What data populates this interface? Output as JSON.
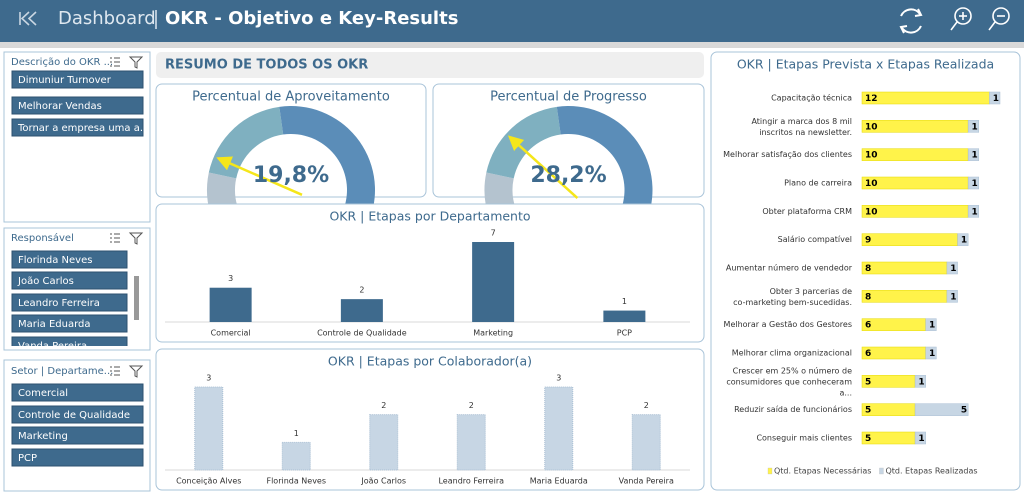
{
  "header": {
    "section": "Dashboard",
    "title": "OKR - Objetivo e Key-Results"
  },
  "slicers": [
    {
      "title": "Descrição do OKR ...",
      "items": [
        "Dimuniur Turnover",
        "Melhorar Vendas",
        "Tornar a empresa uma a..."
      ]
    },
    {
      "title": "Responsável",
      "items": [
        "Florinda Neves",
        "João Carlos",
        "Leandro Ferreira",
        "Maria Eduarda",
        "Vanda Pereira"
      ]
    },
    {
      "title": "Setor | Departame...",
      "items": [
        "Comercial",
        "Controle de Qualidade",
        "Marketing",
        "PCP"
      ]
    }
  ],
  "summary": {
    "title": "RESUMO DE TODOS OS OKR"
  },
  "chart_data": [
    {
      "type": "gauge",
      "title": "Percentual de Aproveitamento",
      "values": [
        19.8
      ],
      "value_labels": [
        "19,8%"
      ],
      "ylim": [
        0,
        100
      ]
    },
    {
      "type": "gauge",
      "title": "Percentual de Progresso",
      "values": [
        28.2
      ],
      "value_labels": [
        "28,2%"
      ],
      "ylim": [
        0,
        100
      ]
    },
    {
      "type": "bar",
      "title": "OKR | Etapas por Departamento",
      "categories": [
        "Comercial",
        "Controle de Qualidade",
        "Marketing",
        "PCP"
      ],
      "values": [
        3,
        2,
        7,
        1
      ],
      "color": "#3e6a8d"
    },
    {
      "type": "bar",
      "title": "OKR | Etapas por Colaborador(a)",
      "categories": [
        "Conceição Alves",
        "Florinda Neves",
        "João Carlos",
        "Leandro Ferreira",
        "Maria Eduarda",
        "Vanda Pereira"
      ],
      "values": [
        3,
        1,
        2,
        2,
        3,
        2
      ],
      "color": "#c7d6e4"
    },
    {
      "type": "barh",
      "title": "OKR | Etapas Prevista x Etapas Realizada",
      "stacked": true,
      "legend": "bottom",
      "categories": [
        "Capacitação técnica",
        "Atingir a marca dos 8 mil inscritos na newsletter.",
        "Melhorar satisfação dos clientes",
        "Plano de carreira",
        "Obter plataforma CRM",
        "Salário compatível",
        "Aumentar número de vendedor",
        "Obter 3 parcerias de co-marketing bem-sucedidas.",
        "Melhorar a Gestão dos Gestores",
        "Melhorar clima organizacional",
        "Crescer em 25% o número de consumidores que conheceram a...",
        "Reduzir saída de funcionários",
        "Conseguir mais clientes"
      ],
      "series": [
        {
          "name": "Qtd. Etapas Necessárias",
          "color": "#fff34a",
          "values": [
            12,
            10,
            10,
            10,
            10,
            9,
            8,
            8,
            6,
            6,
            5,
            5,
            5
          ]
        },
        {
          "name": "Qtd. Etapas Realizadas",
          "color": "#c7d6e4",
          "values": [
            1,
            1,
            1,
            1,
            1,
            1,
            1,
            1,
            1,
            1,
            1,
            5,
            1
          ]
        }
      ]
    }
  ]
}
